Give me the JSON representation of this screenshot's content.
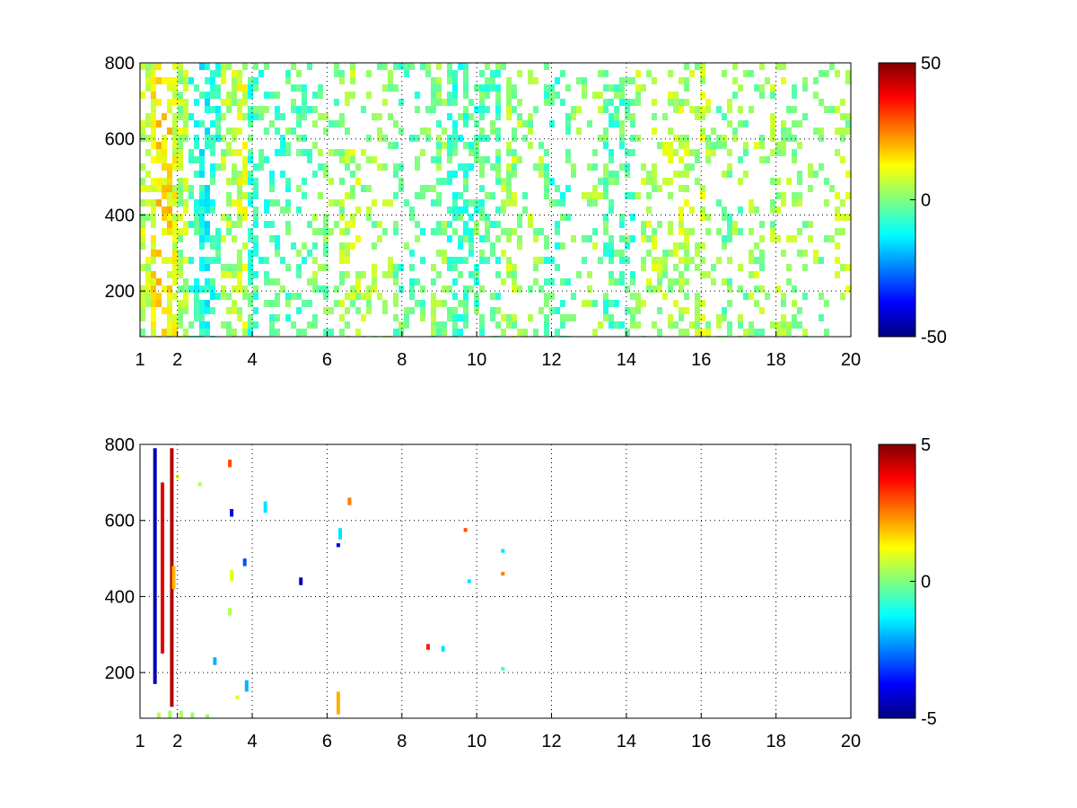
{
  "chart_data": [
    {
      "type": "heatmap",
      "title": "",
      "xlabel": "",
      "ylabel": "",
      "xlim": [
        1,
        20
      ],
      "ylim": [
        80,
        800
      ],
      "x_ticks": [
        1,
        2,
        4,
        6,
        8,
        10,
        12,
        14,
        16,
        18,
        20
      ],
      "y_ticks": [
        200,
        400,
        600,
        800
      ],
      "grid": true,
      "colormap": "jet",
      "colorbar": {
        "min": -50,
        "max": 50,
        "ticks": [
          50,
          0,
          -50
        ]
      },
      "band_density": [
        {
          "x": 1.1,
          "density": 0.55,
          "mean": 5
        },
        {
          "x": 1.3,
          "density": 0.7,
          "mean": 12
        },
        {
          "x": 1.5,
          "density": 0.75,
          "mean": 15
        },
        {
          "x": 1.7,
          "density": 0.8,
          "mean": 14
        },
        {
          "x": 1.9,
          "density": 0.75,
          "mean": 10
        },
        {
          "x": 2.1,
          "density": 0.7,
          "mean": 5
        },
        {
          "x": 2.4,
          "density": 0.7,
          "mean": -8
        },
        {
          "x": 2.7,
          "density": 0.65,
          "mean": -10
        },
        {
          "x": 3.0,
          "density": 0.6,
          "mean": -8
        },
        {
          "x": 3.3,
          "density": 0.65,
          "mean": 4
        },
        {
          "x": 3.6,
          "density": 0.7,
          "mean": 8
        },
        {
          "x": 3.9,
          "density": 0.5,
          "mean": -6
        },
        {
          "x": 4.5,
          "density": 0.35,
          "mean": -5
        },
        {
          "x": 5.2,
          "density": 0.3,
          "mean": -4
        },
        {
          "x": 6.0,
          "density": 0.3,
          "mean": 0
        },
        {
          "x": 6.5,
          "density": 0.4,
          "mean": 4
        },
        {
          "x": 7.3,
          "density": 0.3,
          "mean": 2
        },
        {
          "x": 8.2,
          "density": 0.3,
          "mean": -3
        },
        {
          "x": 8.8,
          "density": 0.45,
          "mean": 0
        },
        {
          "x": 9.5,
          "density": 0.6,
          "mean": -6
        },
        {
          "x": 10.2,
          "density": 0.45,
          "mean": -4
        },
        {
          "x": 10.8,
          "density": 0.4,
          "mean": 3
        },
        {
          "x": 11.5,
          "density": 0.3,
          "mean": 2
        },
        {
          "x": 12.0,
          "density": 0.4,
          "mean": -5
        },
        {
          "x": 12.8,
          "density": 0.25,
          "mean": 2
        },
        {
          "x": 13.9,
          "density": 0.5,
          "mean": -4
        },
        {
          "x": 14.5,
          "density": 0.3,
          "mean": 4
        },
        {
          "x": 15.6,
          "density": 0.4,
          "mean": 5
        },
        {
          "x": 16.7,
          "density": 0.22,
          "mean": 0
        },
        {
          "x": 17.8,
          "density": 0.35,
          "mean": 3
        },
        {
          "x": 18.8,
          "density": 0.2,
          "mean": 2
        },
        {
          "x": 19.6,
          "density": 0.22,
          "mean": 4
        }
      ]
    },
    {
      "type": "heatmap",
      "title": "",
      "xlabel": "",
      "ylabel": "",
      "xlim": [
        1,
        20
      ],
      "ylim": [
        80,
        800
      ],
      "x_ticks": [
        1,
        2,
        4,
        6,
        8,
        10,
        12,
        14,
        16,
        18,
        20
      ],
      "y_ticks": [
        200,
        400,
        600,
        800
      ],
      "grid": true,
      "colormap": "jet",
      "colorbar": {
        "min": -5,
        "max": 5,
        "ticks": [
          5,
          0,
          -5
        ]
      },
      "points": [
        {
          "x": 1.4,
          "y0": 170,
          "y1": 790,
          "value": -4.5
        },
        {
          "x": 1.6,
          "y0": 250,
          "y1": 700,
          "value": 4
        },
        {
          "x": 1.85,
          "y0": 110,
          "y1": 790,
          "value": 4.5
        },
        {
          "x": 1.9,
          "y0": 420,
          "y1": 480,
          "value": 2
        },
        {
          "x": 2.0,
          "y0": 710,
          "y1": 720,
          "value": 1
        },
        {
          "x": 2.6,
          "y0": 690,
          "y1": 700,
          "value": 0.5
        },
        {
          "x": 3.0,
          "y0": 220,
          "y1": 240,
          "value": -2
        },
        {
          "x": 3.4,
          "y0": 740,
          "y1": 760,
          "value": 3
        },
        {
          "x": 3.45,
          "y0": 610,
          "y1": 630,
          "value": -4
        },
        {
          "x": 3.45,
          "y0": 440,
          "y1": 470,
          "value": 1
        },
        {
          "x": 3.4,
          "y0": 350,
          "y1": 370,
          "value": 0.5
        },
        {
          "x": 3.8,
          "y0": 480,
          "y1": 500,
          "value": -3
        },
        {
          "x": 3.85,
          "y0": 150,
          "y1": 180,
          "value": -2
        },
        {
          "x": 3.6,
          "y0": 130,
          "y1": 140,
          "value": 1
        },
        {
          "x": 4.35,
          "y0": 620,
          "y1": 650,
          "value": -1.5
        },
        {
          "x": 5.3,
          "y0": 430,
          "y1": 450,
          "value": -4.5
        },
        {
          "x": 6.3,
          "y0": 530,
          "y1": 540,
          "value": -4
        },
        {
          "x": 6.35,
          "y0": 550,
          "y1": 580,
          "value": -1.5
        },
        {
          "x": 6.3,
          "y0": 90,
          "y1": 150,
          "value": 2
        },
        {
          "x": 6.6,
          "y0": 640,
          "y1": 660,
          "value": 2.5
        },
        {
          "x": 8.7,
          "y0": 260,
          "y1": 275,
          "value": 3.5
        },
        {
          "x": 9.1,
          "y0": 255,
          "y1": 270,
          "value": -1.5
        },
        {
          "x": 9.7,
          "y0": 570,
          "y1": 580,
          "value": 3
        },
        {
          "x": 9.8,
          "y0": 435,
          "y1": 445,
          "value": -1.5
        },
        {
          "x": 10.7,
          "y0": 515,
          "y1": 525,
          "value": -1.5
        },
        {
          "x": 10.7,
          "y0": 455,
          "y1": 465,
          "value": 2.5
        },
        {
          "x": 10.7,
          "y0": 205,
          "y1": 215,
          "value": -0.5
        },
        {
          "x": 1.5,
          "y0": 80,
          "y1": 95,
          "value": 0.5
        },
        {
          "x": 1.8,
          "y0": 80,
          "y1": 100,
          "value": 0.3
        },
        {
          "x": 2.1,
          "y0": 80,
          "y1": 100,
          "value": 0.4
        },
        {
          "x": 2.4,
          "y0": 80,
          "y1": 95,
          "value": 0.2
        },
        {
          "x": 2.8,
          "y0": 80,
          "y1": 90,
          "value": 0.2
        }
      ]
    }
  ]
}
